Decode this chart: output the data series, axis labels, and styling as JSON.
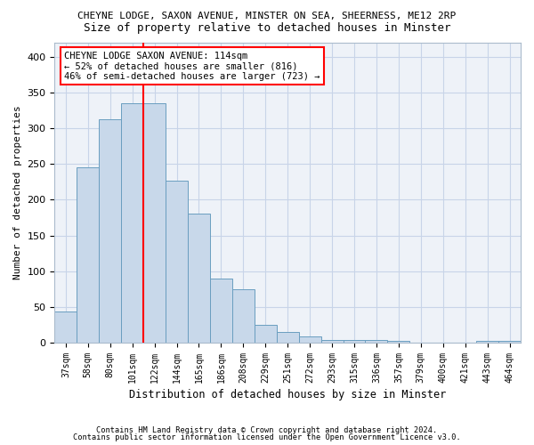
{
  "title1": "CHEYNE LODGE, SAXON AVENUE, MINSTER ON SEA, SHEERNESS, ME12 2RP",
  "title2": "Size of property relative to detached houses in Minster",
  "xlabel": "Distribution of detached houses by size in Minster",
  "ylabel": "Number of detached properties",
  "footnote1": "Contains HM Land Registry data © Crown copyright and database right 2024.",
  "footnote2": "Contains public sector information licensed under the Open Government Licence v3.0.",
  "categories": [
    "37sqm",
    "58sqm",
    "80sqm",
    "101sqm",
    "122sqm",
    "144sqm",
    "165sqm",
    "186sqm",
    "208sqm",
    "229sqm",
    "251sqm",
    "272sqm",
    "293sqm",
    "315sqm",
    "336sqm",
    "357sqm",
    "379sqm",
    "400sqm",
    "421sqm",
    "443sqm",
    "464sqm"
  ],
  "values": [
    44,
    245,
    313,
    335,
    335,
    227,
    180,
    90,
    75,
    25,
    15,
    9,
    4,
    4,
    4,
    2,
    0,
    0,
    0,
    2,
    2
  ],
  "bar_color": "#c8d8ea",
  "bar_edge_color": "#6a9ec0",
  "vline_x": 3.5,
  "vline_color": "red",
  "annotation_text": "CHEYNE LODGE SAXON AVENUE: 114sqm\n← 52% of detached houses are smaller (816)\n46% of semi-detached houses are larger (723) →",
  "ylim": [
    0,
    420
  ],
  "yticks": [
    0,
    50,
    100,
    150,
    200,
    250,
    300,
    350,
    400
  ],
  "grid_color": "#c8d4e8",
  "bg_color": "#eef2f8",
  "title1_fontsize": 8.0,
  "title2_fontsize": 9.0,
  "tick_fontsize": 7,
  "ylabel_fontsize": 8,
  "xlabel_fontsize": 8.5,
  "footnote_fontsize": 6.2
}
